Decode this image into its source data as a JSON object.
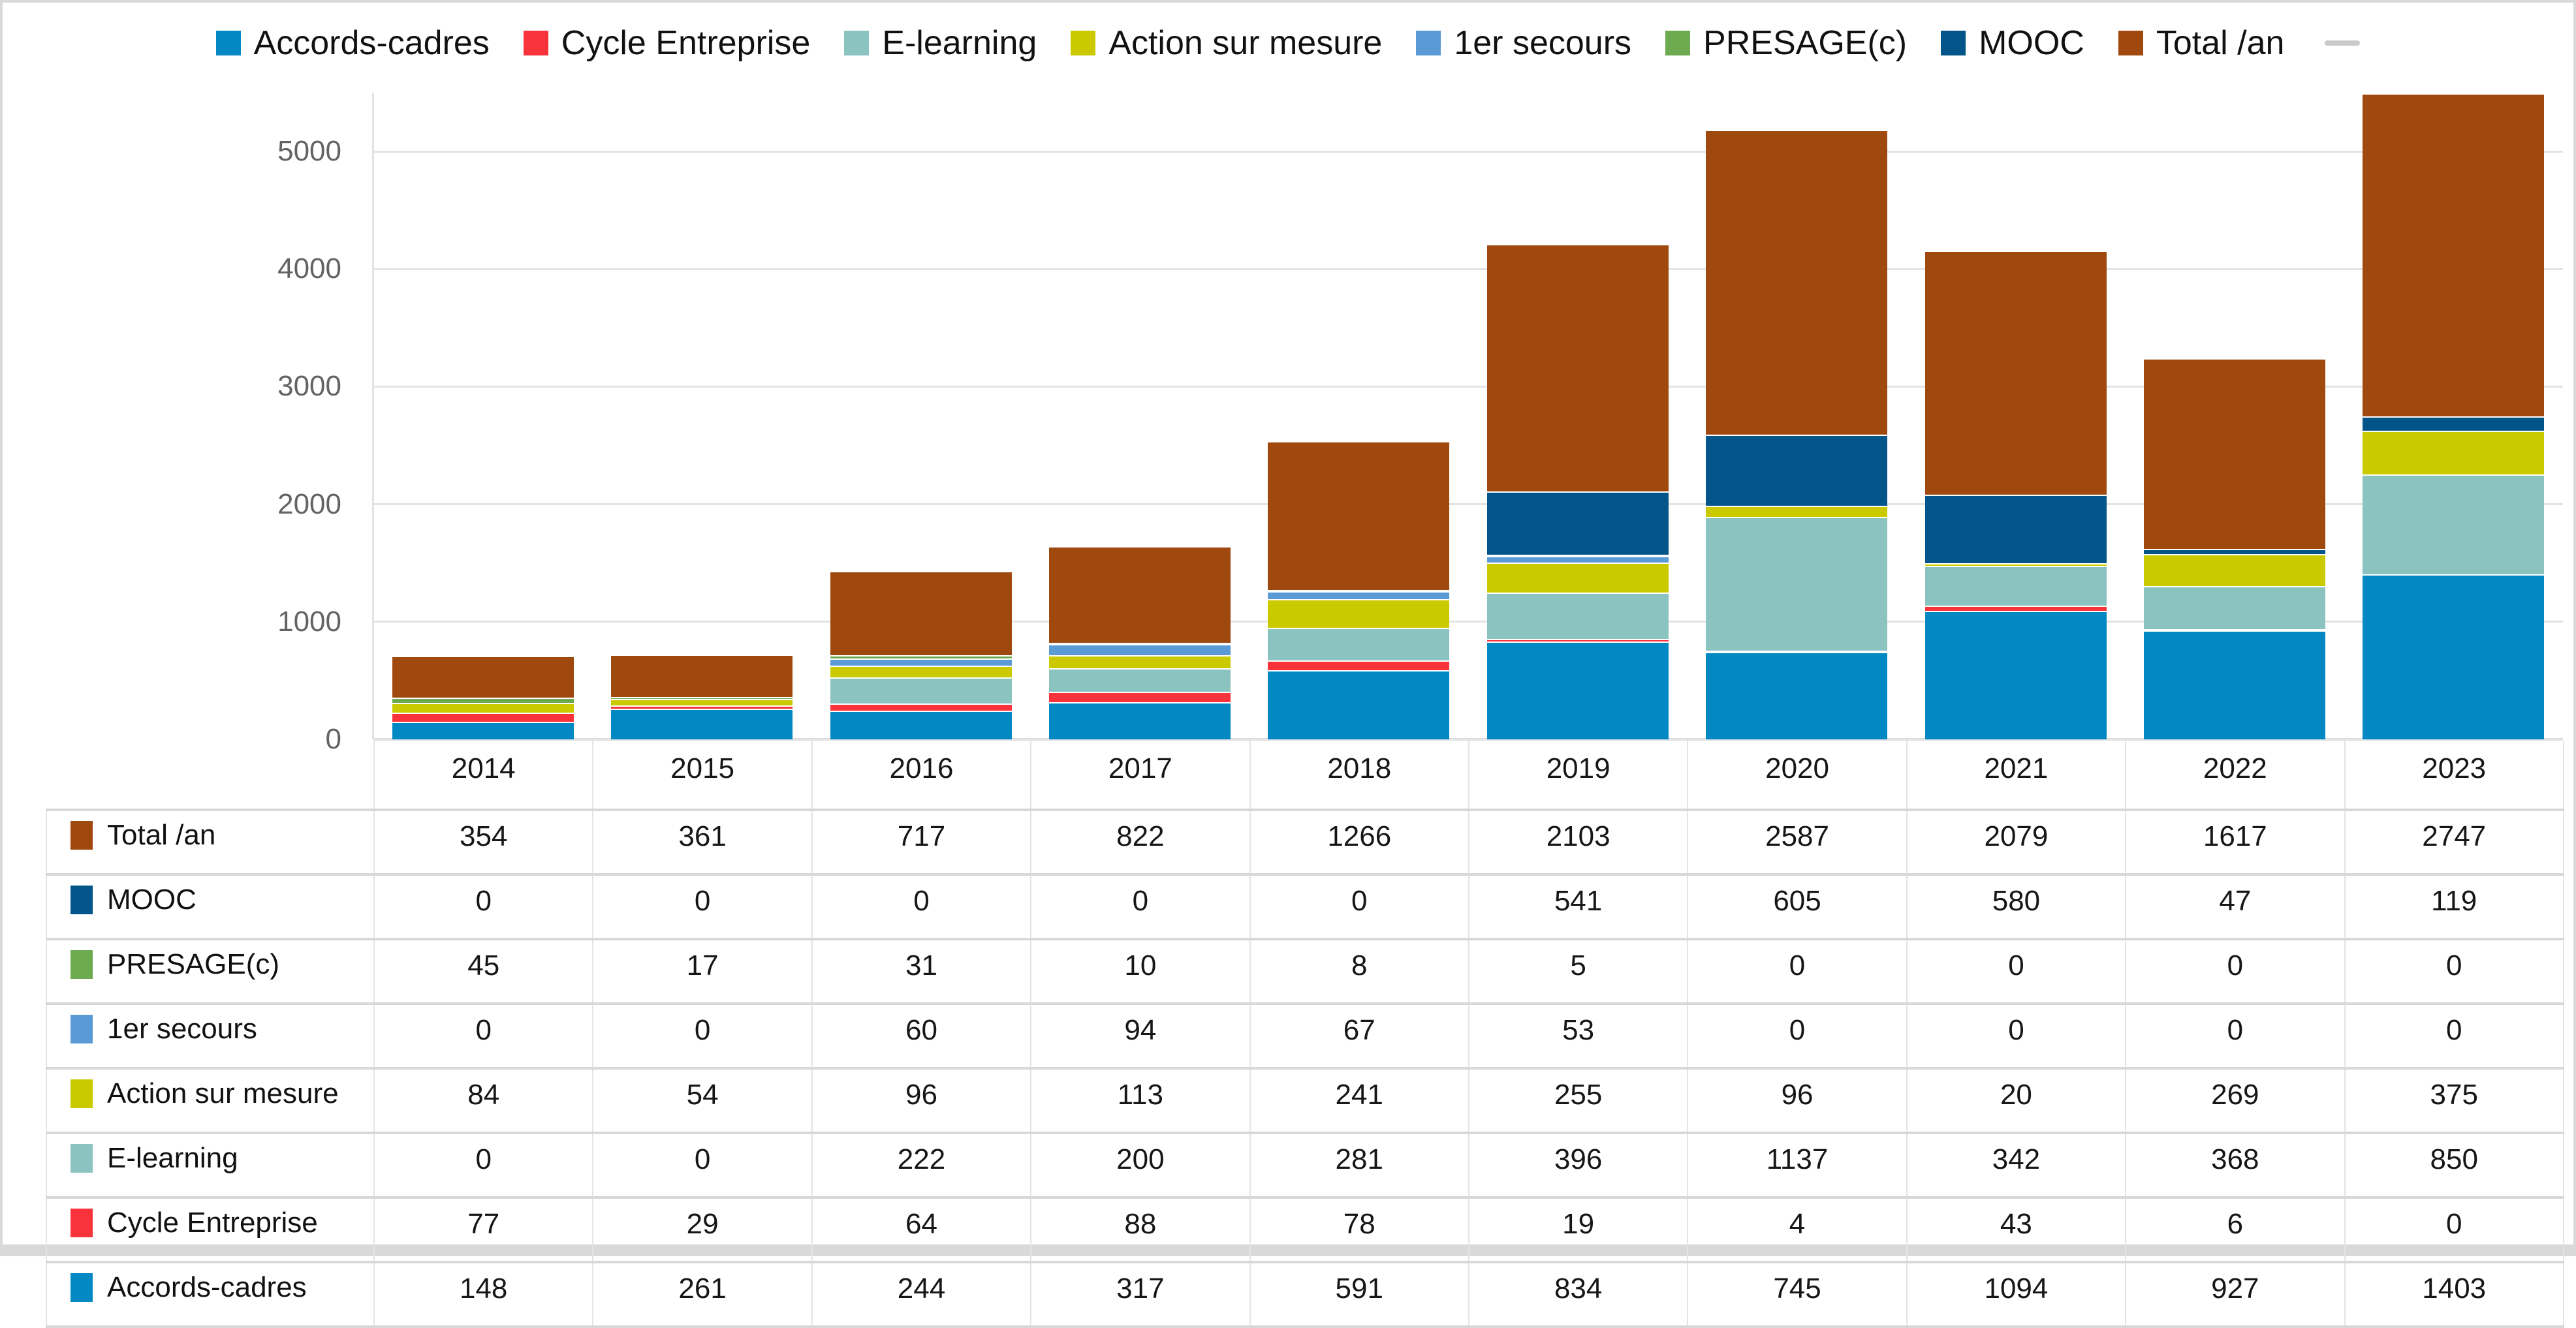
{
  "chart_data": {
    "type": "bar",
    "stacked": true,
    "title": "",
    "xlabel": "",
    "ylabel": "",
    "categories": [
      "2014",
      "2015",
      "2016",
      "2017",
      "2018",
      "2019",
      "2020",
      "2021",
      "2022",
      "2023"
    ],
    "series": [
      {
        "name": "Accords-cadres",
        "color": "#0289C3",
        "values": [
          148,
          261,
          244,
          317,
          591,
          834,
          745,
          1094,
          927,
          1403
        ]
      },
      {
        "name": "Cycle Entreprise",
        "color": "#F8333C",
        "values": [
          77,
          29,
          64,
          88,
          78,
          19,
          4,
          43,
          6,
          0
        ]
      },
      {
        "name": "E-learning",
        "color": "#8AC3C0",
        "values": [
          0,
          0,
          222,
          200,
          281,
          396,
          1137,
          342,
          368,
          850
        ]
      },
      {
        "name": "Action sur mesure",
        "color": "#CBCA00",
        "values": [
          84,
          54,
          96,
          113,
          241,
          255,
          96,
          20,
          269,
          375
        ]
      },
      {
        "name": "1er secours",
        "color": "#5B9BD5",
        "values": [
          0,
          0,
          60,
          94,
          67,
          53,
          0,
          0,
          0,
          0
        ]
      },
      {
        "name": "PRESAGE(c)",
        "color": "#6DAA50",
        "values": [
          45,
          17,
          31,
          10,
          8,
          5,
          0,
          0,
          0,
          0
        ]
      },
      {
        "name": "MOOC",
        "color": "#015588",
        "values": [
          0,
          0,
          0,
          0,
          0,
          541,
          605,
          580,
          47,
          119
        ]
      },
      {
        "name": "Total /an",
        "color": "#A0490F",
        "values": [
          354,
          361,
          717,
          822,
          1266,
          2103,
          2587,
          2079,
          1617,
          2747
        ]
      }
    ],
    "ylim": [
      0,
      5500
    ],
    "yticks": [
      0,
      1000,
      2000,
      3000,
      4000,
      5000
    ],
    "grid": true,
    "legend_position": "top",
    "table_row_order": [
      "Total /an",
      "MOOC",
      "PRESAGE(c)",
      "1er secours",
      "Action sur mesure",
      "E-learning",
      "Cycle Entreprise",
      "Accords-cadres"
    ]
  }
}
